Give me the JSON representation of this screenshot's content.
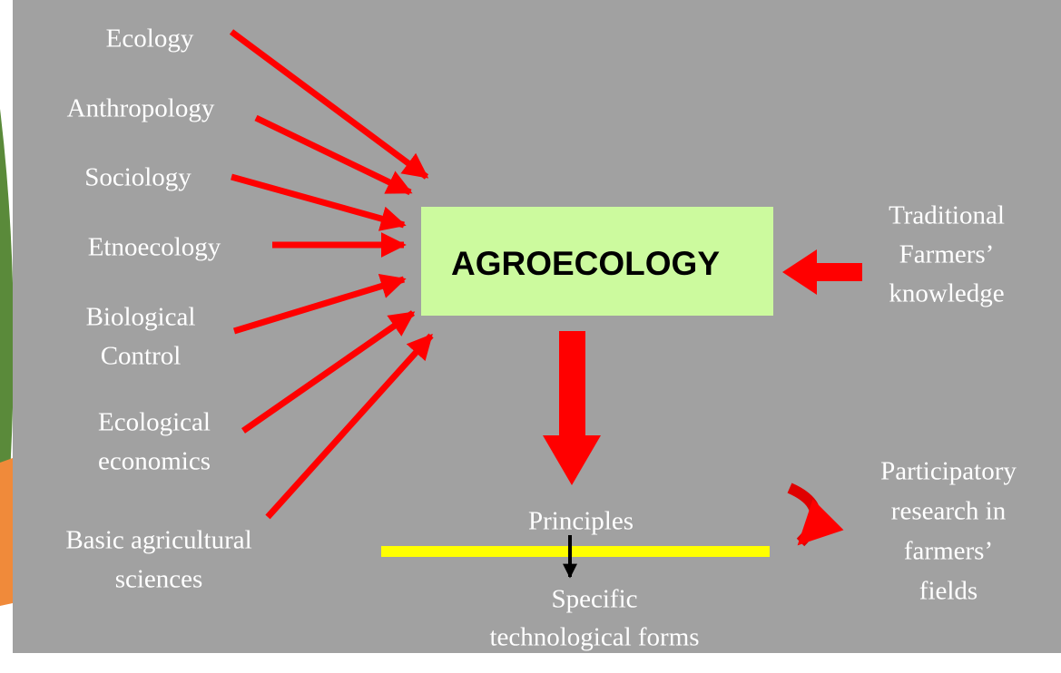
{
  "disciplines": [
    [
      "Ecology"
    ],
    [
      "Anthropology"
    ],
    [
      "Sociology"
    ],
    [
      "Etnoecology"
    ],
    [
      "Biological",
      "Control"
    ],
    [
      "Ecological",
      "economics"
    ],
    [
      "Basic agricultural",
      "sciences"
    ]
  ],
  "center": "AGROECOLOGY",
  "traditional": [
    "Traditional",
    "Farmers’",
    "knowledge"
  ],
  "principles": "Principles",
  "specific": [
    "Specific",
    "technological  forms"
  ],
  "participatory": [
    "Participatory",
    "research in",
    "farmers’",
    "fields"
  ]
}
